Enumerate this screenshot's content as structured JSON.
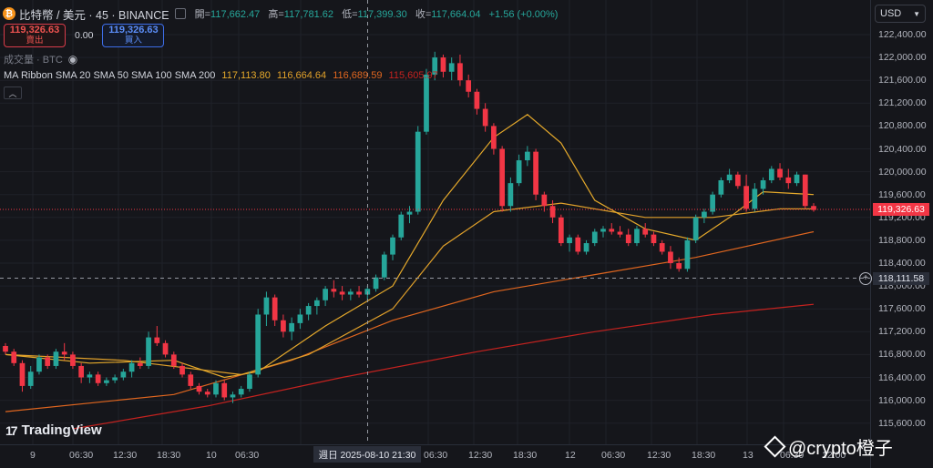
{
  "header": {
    "symbol": "比特幣 / 美元 · 45 · BINANCE",
    "open_label": "開=",
    "open": "117,662.47",
    "high_label": "高=",
    "high": "117,781.62",
    "low_label": "低=",
    "low": "117,399.30",
    "close_label": "收=",
    "close": "117,664.04",
    "change": "+1.56 (+0.00%)"
  },
  "trade": {
    "sell_price": "119,326.63",
    "sell_label": "賣出",
    "spread": "0.00",
    "buy_price": "119,326.63",
    "buy_label": "買入"
  },
  "volume_label": "成交量 · BTC",
  "ribbon": {
    "label": "MA Ribbon SMA 20 SMA 50 SMA 100 SMA 200",
    "v1": "117,113.80",
    "v2": "116,664.64",
    "v3": "116,689.59",
    "v4": "115,605.97"
  },
  "currency": "USD",
  "y_axis": [
    "122,400.00",
    "122,000.00",
    "121,600.00",
    "121,200.00",
    "120,800.00",
    "120,400.00",
    "120,000.00",
    "119,600.00",
    "119,200.00",
    "118,800.00",
    "118,400.00",
    "118,000.00",
    "117,600.00",
    "117,200.00",
    "116,800.00",
    "116,400.00",
    "116,000.00",
    "115,600.00"
  ],
  "current_price": "119,326.63",
  "crosshair_price": "118,111.58",
  "x_axis": [
    "9",
    "06:30",
    "12:30",
    "18:30",
    "10",
    "06:30",
    "12:30",
    "06:30",
    "12:30",
    "18:30",
    "12",
    "06:30",
    "12:30",
    "18:30",
    "13",
    "06:30",
    "12:00"
  ],
  "crosshair_time": "週日 2025-08-10  21:30",
  "brand": "TradingView",
  "watermark": "@crypto橙子",
  "colors": {
    "up": "#26a69a",
    "down": "#f23645",
    "sma20": "#e5a92b",
    "sma50": "#e0a02a",
    "sma100": "#e0661f",
    "sma200": "#c4221f"
  },
  "chart_data": {
    "type": "candlestick",
    "ylim": [
      115400,
      122600
    ],
    "ohlc": [
      [
        116950,
        117000,
        116800,
        116850
      ],
      [
        116850,
        116900,
        116600,
        116650
      ],
      [
        116650,
        116700,
        116150,
        116250
      ],
      [
        116250,
        116600,
        116200,
        116500
      ],
      [
        116500,
        116800,
        116450,
        116750
      ],
      [
        116750,
        116800,
        116550,
        116600
      ],
      [
        116600,
        116900,
        116550,
        116850
      ],
      [
        116850,
        117000,
        116700,
        116800
      ],
      [
        116800,
        116850,
        116550,
        116600
      ],
      [
        116600,
        116650,
        116300,
        116400
      ],
      [
        116400,
        116500,
        116300,
        116450
      ],
      [
        116450,
        116500,
        116250,
        116300
      ],
      [
        116300,
        116400,
        116250,
        116350
      ],
      [
        116350,
        116450,
        116300,
        116400
      ],
      [
        116400,
        116550,
        116350,
        116500
      ],
      [
        116500,
        116700,
        116400,
        116650
      ],
      [
        116650,
        116750,
        116550,
        116600
      ],
      [
        116600,
        117200,
        116550,
        117100
      ],
      [
        117100,
        117300,
        116950,
        117000
      ],
      [
        117000,
        117050,
        116750,
        116800
      ],
      [
        116800,
        116850,
        116550,
        116600
      ],
      [
        116600,
        116650,
        116400,
        116450
      ],
      [
        116450,
        116500,
        116200,
        116250
      ],
      [
        116250,
        116300,
        116100,
        116150
      ],
      [
        116150,
        116200,
        116050,
        116100
      ],
      [
        116100,
        116350,
        116050,
        116300
      ],
      [
        116300,
        116350,
        116000,
        116050
      ],
      [
        116050,
        116150,
        115950,
        116100
      ],
      [
        116100,
        116250,
        116050,
        116200
      ],
      [
        116200,
        116500,
        116150,
        116450
      ],
      [
        116450,
        117600,
        116400,
        117500
      ],
      [
        117500,
        117900,
        117300,
        117800
      ],
      [
        117800,
        117850,
        117300,
        117400
      ],
      [
        117400,
        117500,
        117100,
        117200
      ],
      [
        117200,
        117450,
        117050,
        117350
      ],
      [
        117350,
        117600,
        117250,
        117500
      ],
      [
        117500,
        117700,
        117400,
        117650
      ],
      [
        117650,
        117800,
        117500,
        117750
      ],
      [
        117750,
        118000,
        117650,
        117950
      ],
      [
        117950,
        118100,
        117800,
        117900
      ],
      [
        117900,
        118000,
        117750,
        117850
      ],
      [
        117850,
        117950,
        117750,
        117900
      ],
      [
        117900,
        118000,
        117800,
        117850
      ],
      [
        117850,
        118000,
        117750,
        117950
      ],
      [
        117950,
        118200,
        117900,
        118150
      ],
      [
        118150,
        118600,
        118100,
        118550
      ],
      [
        118550,
        118900,
        118450,
        118850
      ],
      [
        118850,
        119300,
        118800,
        119250
      ],
      [
        119250,
        119400,
        119100,
        119300
      ],
      [
        119300,
        120800,
        119250,
        120700
      ],
      [
        120700,
        121800,
        120650,
        121700
      ],
      [
        121700,
        122100,
        121600,
        122000
      ],
      [
        122000,
        122050,
        121650,
        121750
      ],
      [
        121750,
        122000,
        121600,
        121900
      ],
      [
        121900,
        122050,
        121500,
        121600
      ],
      [
        121600,
        121700,
        121300,
        121400
      ],
      [
        121400,
        121450,
        121000,
        121100
      ],
      [
        121100,
        121200,
        120700,
        120800
      ],
      [
        120800,
        120850,
        120300,
        120400
      ],
      [
        120400,
        120450,
        119300,
        119400
      ],
      [
        119400,
        119900,
        119300,
        119800
      ],
      [
        119800,
        120300,
        119750,
        120200
      ],
      [
        120200,
        120450,
        120100,
        120350
      ],
      [
        120350,
        120400,
        119500,
        119600
      ],
      [
        119600,
        119650,
        119300,
        119400
      ],
      [
        119400,
        119500,
        119100,
        119200
      ],
      [
        119200,
        119250,
        118700,
        118750
      ],
      [
        118750,
        118900,
        118600,
        118850
      ],
      [
        118850,
        118900,
        118550,
        118600
      ],
      [
        118600,
        118800,
        118550,
        118750
      ],
      [
        118750,
        119000,
        118700,
        118950
      ],
      [
        118950,
        119050,
        118850,
        119000
      ],
      [
        119000,
        119100,
        118900,
        118950
      ],
      [
        118950,
        119050,
        118850,
        118900
      ],
      [
        118900,
        119000,
        118700,
        118750
      ],
      [
        118750,
        119050,
        118700,
        119000
      ],
      [
        119000,
        119100,
        118850,
        118900
      ],
      [
        118900,
        118950,
        118700,
        118750
      ],
      [
        118750,
        118800,
        118550,
        118600
      ],
      [
        118600,
        118700,
        118300,
        118400
      ],
      [
        118400,
        118500,
        118250,
        118300
      ],
      [
        118300,
        118850,
        118250,
        118800
      ],
      [
        118800,
        119250,
        118750,
        119200
      ],
      [
        119200,
        119350,
        119100,
        119300
      ],
      [
        119300,
        119650,
        119250,
        119600
      ],
      [
        119600,
        119900,
        119550,
        119850
      ],
      [
        119850,
        120050,
        119800,
        119950
      ],
      [
        119950,
        120000,
        119700,
        119750
      ],
      [
        119750,
        119950,
        119300,
        119350
      ],
      [
        119350,
        119800,
        119300,
        119700
      ],
      [
        119700,
        119900,
        119600,
        119850
      ],
      [
        119850,
        120100,
        119800,
        120050
      ],
      [
        120050,
        120150,
        119850,
        119900
      ],
      [
        119900,
        120050,
        119700,
        119800
      ],
      [
        119800,
        120000,
        119750,
        119950
      ],
      [
        119950,
        119950,
        119350,
        119400
      ],
      [
        119400,
        119450,
        119300,
        119330
      ]
    ],
    "sma20": [
      [
        0,
        116800
      ],
      [
        10,
        116650
      ],
      [
        20,
        116700
      ],
      [
        26,
        116400
      ],
      [
        30,
        116500
      ],
      [
        38,
        117300
      ],
      [
        46,
        118000
      ],
      [
        52,
        119500
      ],
      [
        58,
        120600
      ],
      [
        62,
        121000
      ],
      [
        66,
        120500
      ],
      [
        70,
        119500
      ],
      [
        76,
        119000
      ],
      [
        82,
        118800
      ],
      [
        86,
        119200
      ],
      [
        90,
        119650
      ],
      [
        96,
        119600
      ]
    ],
    "sma50": [
      [
        0,
        116800
      ],
      [
        14,
        116700
      ],
      [
        28,
        116450
      ],
      [
        36,
        116800
      ],
      [
        46,
        117600
      ],
      [
        52,
        118700
      ],
      [
        58,
        119300
      ],
      [
        66,
        119450
      ],
      [
        76,
        119200
      ],
      [
        84,
        119200
      ],
      [
        92,
        119350
      ],
      [
        96,
        119350
      ]
    ],
    "sma100": [
      [
        0,
        115800
      ],
      [
        20,
        116100
      ],
      [
        34,
        116700
      ],
      [
        46,
        117400
      ],
      [
        58,
        117900
      ],
      [
        70,
        118200
      ],
      [
        82,
        118500
      ],
      [
        96,
        118950
      ]
    ],
    "sma200": [
      [
        8,
        115500
      ],
      [
        24,
        115900
      ],
      [
        40,
        116400
      ],
      [
        56,
        116850
      ],
      [
        70,
        117200
      ],
      [
        84,
        117500
      ],
      [
        96,
        117680
      ]
    ]
  }
}
